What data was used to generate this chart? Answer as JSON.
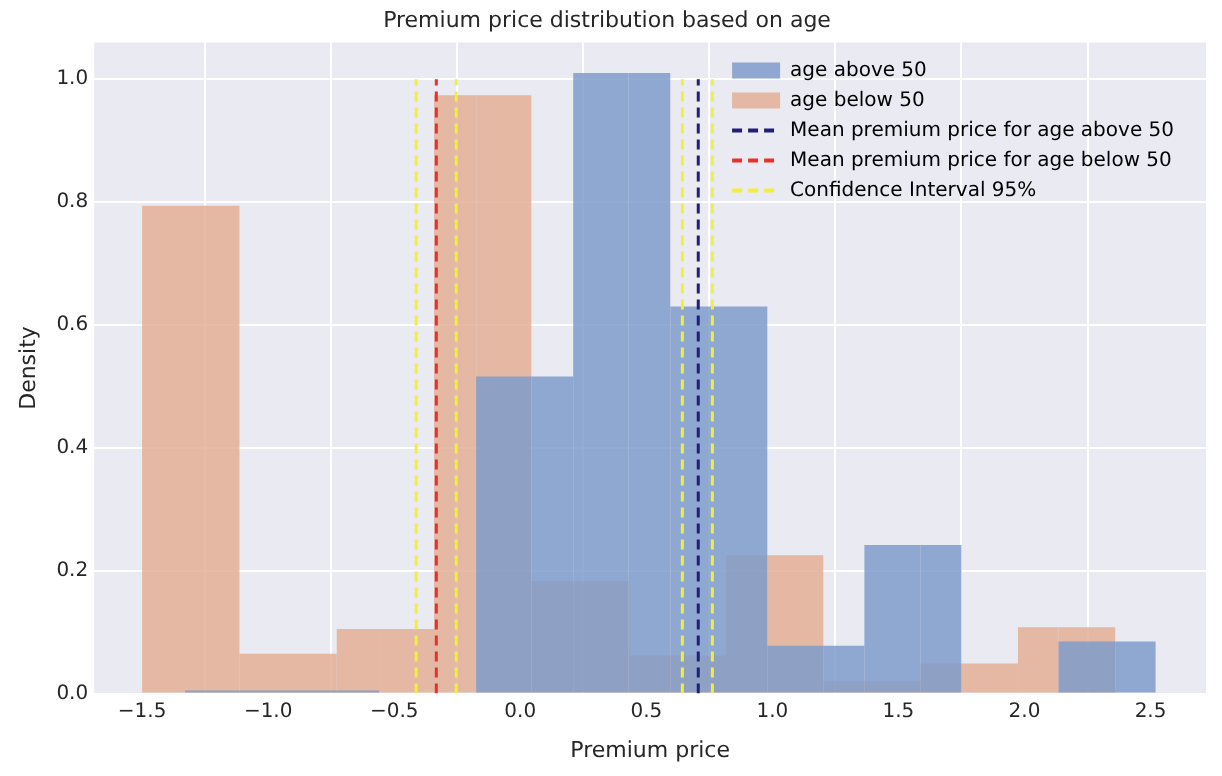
{
  "chart_data": {
    "type": "histogram",
    "title": "Premium price distribution based on age",
    "xlabel": "Premium price",
    "ylabel": "Density",
    "bins": [
      -1.5,
      -1.33,
      -1.114,
      -0.945,
      -0.728,
      -0.56,
      -0.342,
      -0.175,
      0.044,
      0.21,
      0.43,
      0.595,
      0.816,
      0.98,
      1.202,
      1.365,
      1.588,
      1.75,
      1.974,
      2.135,
      2.36,
      2.52
    ],
    "series": [
      {
        "name": "age above 50",
        "color": "#7f9ccb",
        "values": [
          null,
          0.005,
          0.005,
          0.005,
          0.005,
          0,
          0,
          0.516,
          0.516,
          1.01,
          1.01,
          0.63,
          0.63,
          0.078,
          0.078,
          0.242,
          0.242,
          0,
          0,
          0.085,
          0.085
        ]
      },
      {
        "name": "age below 50",
        "color": "#e3af95",
        "values": [
          0.794,
          0.794,
          0.065,
          0.065,
          0.105,
          0.105,
          0.974,
          0.974,
          0.183,
          0.183,
          0.062,
          0.062,
          0.225,
          0.225,
          0.02,
          0.02,
          0.049,
          0.049,
          0.108,
          0.108,
          null
        ]
      },
      {
        "name": "Mean premium price for age above 50",
        "type": "line",
        "color": "#1f1f7a",
        "line_style": "dashed",
        "marker": "none",
        "x": [
          0.706,
          0.706
        ],
        "values": [
          0,
          1
        ]
      },
      {
        "name": "Mean premium price for age below 50",
        "type": "line",
        "color": "#e8312a",
        "line_style": "dashed",
        "marker": "none",
        "x": [
          -0.333,
          -0.333
        ],
        "values": [
          0,
          1
        ]
      },
      {
        "name": "Confidence Interval 95%",
        "type": "line",
        "color": "#f2ef3a",
        "line_style": "dashed",
        "marker": "none",
        "x": [
          -0.413,
          -0.413,
          null,
          -0.254,
          -0.254,
          null,
          0.643,
          0.643,
          null,
          0.762,
          0.762
        ],
        "values": [
          0,
          1,
          null,
          0,
          1,
          null,
          0,
          1,
          null,
          0,
          1
        ]
      }
    ],
    "xlim": [
      -1.69,
      2.72
    ],
    "xticks": [
      {
        "value": -1.5,
        "label": "−1.5"
      },
      {
        "value": -1,
        "label": "−1.0"
      },
      {
        "value": -0.5,
        "label": "−0.5"
      },
      {
        "value": 0,
        "label": "0.0"
      },
      {
        "value": 0.5,
        "label": "0.5"
      },
      {
        "value": 1,
        "label": "1.0"
      },
      {
        "value": 1.5,
        "label": "1.5"
      },
      {
        "value": 2,
        "label": "2.0"
      },
      {
        "value": 2.5,
        "label": "2.5"
      }
    ],
    "ylim": [
      0,
      1.06
    ],
    "yticks": [
      {
        "value": 0,
        "label": "0.0"
      },
      {
        "value": 0.2,
        "label": "0.2"
      },
      {
        "value": 0.4,
        "label": "0.4"
      },
      {
        "value": 0.6,
        "label": "0.6"
      },
      {
        "value": 0.8,
        "label": "0.8"
      },
      {
        "value": 1,
        "label": "1.0"
      }
    ],
    "grid": true,
    "legend": "top right"
  }
}
